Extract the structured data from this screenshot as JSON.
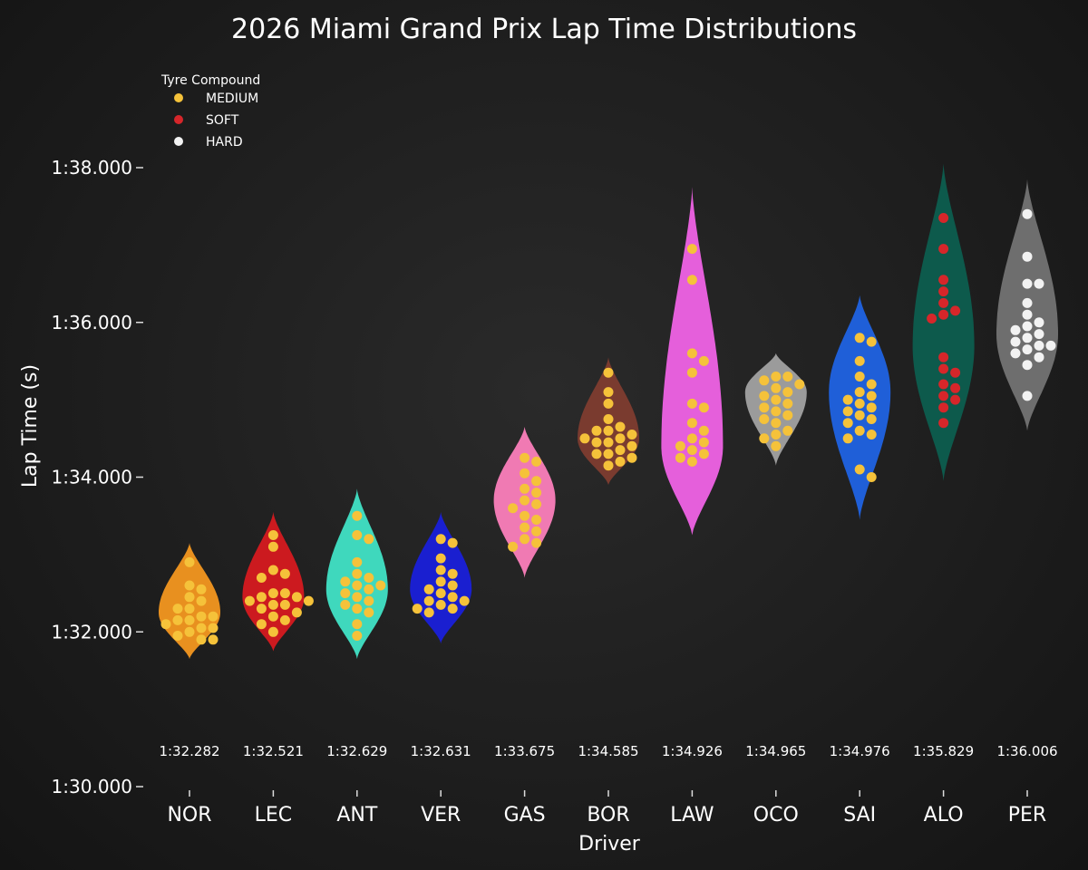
{
  "chart_data": {
    "type": "violin",
    "title": "2026 Miami Grand Prix Lap Time Distributions",
    "xlabel": "Driver",
    "ylabel": "Lap Time (s)",
    "ylim": [
      90,
      98.8
    ],
    "yticks": [
      90,
      92,
      94,
      96,
      98
    ],
    "ytick_labels": [
      "1:30.000",
      "1:32.000",
      "1:34.000",
      "1:36.000",
      "1:38.000"
    ],
    "grid": false,
    "legend": {
      "title": "Tyre Compound",
      "placement": "top-left",
      "entries": [
        {
          "name": "MEDIUM",
          "color": "#f5c23a"
        },
        {
          "name": "SOFT",
          "color": "#d6262a"
        },
        {
          "name": "HARD",
          "color": "#f2f2f2"
        }
      ]
    },
    "drivers": [
      {
        "name": "NOR",
        "median_label": "1:32.282",
        "color": "#e8901f",
        "compound": "MEDIUM",
        "violin_min": 91.65,
        "violin_max": 93.15,
        "peak": 92.25,
        "laps": [
          92.9,
          92.6,
          92.55,
          92.45,
          92.4,
          92.3,
          92.3,
          92.2,
          92.2,
          92.15,
          92.15,
          92.1,
          92.05,
          92.0,
          91.95,
          91.9,
          91.9,
          92.05
        ]
      },
      {
        "name": "LEC",
        "median_label": "1:32.521",
        "color": "#cc1a1f",
        "compound": "MEDIUM",
        "violin_min": 91.75,
        "violin_max": 93.55,
        "peak": 92.45,
        "laps": [
          93.25,
          93.1,
          92.8,
          92.75,
          92.7,
          92.5,
          92.45,
          92.45,
          92.4,
          92.4,
          92.35,
          92.3,
          92.25,
          92.2,
          92.15,
          92.1,
          92.0,
          92.35,
          92.5
        ]
      },
      {
        "name": "ANT",
        "median_label": "1:32.629",
        "color": "#3fd8bd",
        "compound": "MEDIUM",
        "violin_min": 91.65,
        "violin_max": 93.85,
        "peak": 92.55,
        "laps": [
          93.5,
          93.25,
          93.2,
          92.9,
          92.75,
          92.7,
          92.65,
          92.6,
          92.55,
          92.5,
          92.45,
          92.4,
          92.35,
          92.3,
          92.25,
          92.1,
          91.95,
          92.6
        ]
      },
      {
        "name": "VER",
        "median_label": "1:32.631",
        "color": "#1a1fd0",
        "compound": "MEDIUM",
        "violin_min": 91.85,
        "violin_max": 93.55,
        "peak": 92.55,
        "laps": [
          93.2,
          93.15,
          92.95,
          92.8,
          92.75,
          92.65,
          92.6,
          92.55,
          92.5,
          92.45,
          92.4,
          92.35,
          92.3,
          92.3,
          92.25,
          92.4
        ]
      },
      {
        "name": "GAS",
        "median_label": "1:33.675",
        "color": "#f07ab3",
        "compound": "MEDIUM",
        "violin_min": 92.7,
        "violin_max": 94.65,
        "peak": 93.7,
        "laps": [
          94.25,
          94.2,
          94.05,
          93.95,
          93.85,
          93.8,
          93.7,
          93.65,
          93.6,
          93.5,
          93.45,
          93.35,
          93.3,
          93.2,
          93.15,
          93.1
        ]
      },
      {
        "name": "BOR",
        "median_label": "1:34.585",
        "color": "#7a3b2f",
        "compound": "MEDIUM",
        "violin_min": 93.9,
        "violin_max": 95.55,
        "peak": 94.5,
        "laps": [
          95.35,
          95.1,
          94.95,
          94.75,
          94.65,
          94.6,
          94.55,
          94.5,
          94.5,
          94.45,
          94.45,
          94.4,
          94.35,
          94.3,
          94.3,
          94.25,
          94.2,
          94.15,
          94.6
        ]
      },
      {
        "name": "LAW",
        "median_label": "1:34.926",
        "color": "#e55fdb",
        "compound": "MEDIUM",
        "violin_min": 93.25,
        "violin_max": 97.75,
        "peak": 94.4,
        "laps": [
          96.95,
          96.55,
          95.6,
          95.5,
          95.35,
          94.95,
          94.9,
          94.7,
          94.6,
          94.5,
          94.45,
          94.4,
          94.35,
          94.3,
          94.25,
          94.2
        ]
      },
      {
        "name": "OCO",
        "median_label": "1:34.965",
        "color": "#9b9b9b",
        "compound": "MEDIUM",
        "violin_min": 94.15,
        "violin_max": 95.6,
        "peak": 95.1,
        "laps": [
          95.3,
          95.3,
          95.25,
          95.2,
          95.15,
          95.1,
          95.05,
          95.0,
          94.95,
          94.9,
          94.85,
          94.8,
          94.75,
          94.7,
          94.6,
          94.55,
          94.5,
          94.4
        ]
      },
      {
        "name": "SAI",
        "median_label": "1:34.976",
        "color": "#1f5fd8",
        "compound": "MEDIUM",
        "violin_min": 93.45,
        "violin_max": 96.35,
        "peak": 95.1,
        "laps": [
          95.8,
          95.75,
          95.5,
          95.3,
          95.2,
          95.1,
          95.05,
          95.0,
          94.95,
          94.9,
          94.85,
          94.8,
          94.75,
          94.7,
          94.6,
          94.55,
          94.5,
          94.1,
          94.0
        ]
      },
      {
        "name": "ALO",
        "median_label": "1:35.829",
        "color": "#0d5a4c",
        "compound": "SOFT",
        "violin_min": 93.95,
        "violin_max": 98.05,
        "peak": 95.7,
        "laps": [
          97.35,
          96.95,
          96.55,
          96.4,
          96.25,
          96.1,
          96.05,
          95.55,
          95.4,
          95.2,
          95.15,
          95.05,
          95.0,
          94.9,
          94.7,
          96.15,
          95.35
        ]
      },
      {
        "name": "PER",
        "median_label": "1:36.006",
        "color": "#6e6e6e",
        "compound": "HARD",
        "violin_min": 94.6,
        "violin_max": 97.85,
        "peak": 95.85,
        "laps": [
          97.4,
          96.85,
          96.5,
          96.5,
          96.25,
          96.1,
          96.0,
          95.95,
          95.85,
          95.8,
          95.75,
          95.7,
          95.7,
          95.65,
          95.6,
          95.55,
          95.45,
          95.05,
          95.9
        ]
      }
    ]
  }
}
